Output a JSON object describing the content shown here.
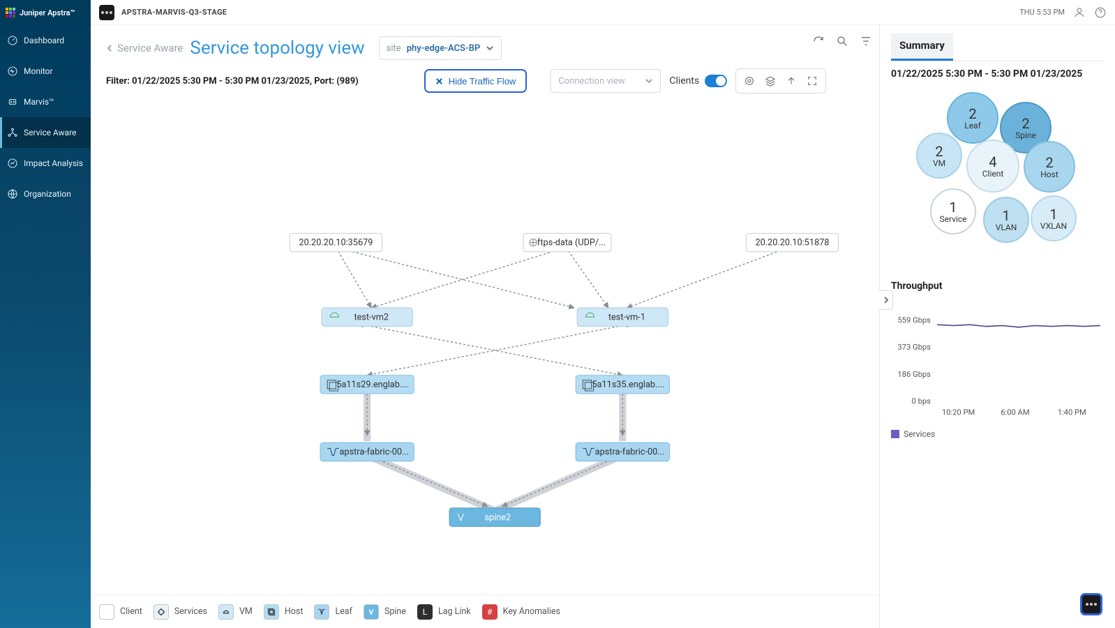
{
  "brand": {
    "name": "Juniper Apstra™"
  },
  "topbar": {
    "app_name": "APSTRA-MARVIS-Q3-STAGE",
    "clock": "THU 5:53 PM"
  },
  "sidebar": {
    "items": [
      {
        "label": "Dashboard"
      },
      {
        "label": "Monitor"
      },
      {
        "label": "Marvis™"
      },
      {
        "label": "Service Aware"
      },
      {
        "label": "Impact Analysis"
      },
      {
        "label": "Organization"
      }
    ]
  },
  "header": {
    "back_label": "Service Aware",
    "title": "Service topology view",
    "site_prefix": "site",
    "site_value": "phy-edge-ACS-BP"
  },
  "filter": {
    "text": "Filter: 01/22/2025 5:30 PM - 5:30 PM 01/23/2025, Port: (989)",
    "hide_btn": "Hide Traffic Flow",
    "conn_placeholder": "Connection view",
    "clients_label": "Clients"
  },
  "topology": {
    "nodes": {
      "svc_left": {
        "label": "20.20.20.10:35679",
        "type": "service"
      },
      "svc_mid": {
        "label": "ftps-data (UDP/...",
        "type": "service"
      },
      "svc_right": {
        "label": "20.20.20.10:51878",
        "type": "service"
      },
      "vm_left": {
        "label": "test-vm2",
        "type": "vm"
      },
      "vm_right": {
        "label": "test-vm-1",
        "type": "vm"
      },
      "host_left": {
        "label": "5a11s29.englab....",
        "type": "host"
      },
      "host_right": {
        "label": "5a11s35.englab....",
        "type": "host"
      },
      "leaf_left": {
        "label": "apstra-fabric-00...",
        "type": "leaf"
      },
      "leaf_right": {
        "label": "apstra-fabric-00...",
        "type": "leaf"
      },
      "spine": {
        "label": "spine2",
        "type": "spine"
      }
    }
  },
  "legend": {
    "items": [
      {
        "label": "Client"
      },
      {
        "label": "Services"
      },
      {
        "label": "VM"
      },
      {
        "label": "Host"
      },
      {
        "label": "Leaf"
      },
      {
        "label": "Spine"
      },
      {
        "label": "Lag Link"
      },
      {
        "label": "Key Anomalies"
      }
    ]
  },
  "summary": {
    "tab": "Summary",
    "range": "01/22/2025 5:30 PM - 5:30 PM 01/23/2025",
    "bubbles": [
      {
        "num": "2",
        "lbl": "Leaf",
        "d": 74,
        "x": 80,
        "y": 0,
        "bg": "#8fc9ea",
        "border": "#6bb2da"
      },
      {
        "num": "2",
        "lbl": "Spine",
        "d": 74,
        "x": 156,
        "y": 14,
        "bg": "#6bb2da",
        "border": "#4c99c7"
      },
      {
        "num": "2",
        "lbl": "VM",
        "d": 66,
        "x": 36,
        "y": 58,
        "bg": "#c8e5f5",
        "border": "#a9d2ea"
      },
      {
        "num": "4",
        "lbl": "Client",
        "d": 76,
        "x": 108,
        "y": 68,
        "bg": "#e8f3fa",
        "border": "#c7dceb"
      },
      {
        "num": "2",
        "lbl": "Host",
        "d": 74,
        "x": 190,
        "y": 70,
        "bg": "#a9d6ef",
        "border": "#85bfde"
      },
      {
        "num": "1",
        "lbl": "Service",
        "d": 66,
        "x": 56,
        "y": 138,
        "bg": "#ffffff",
        "border": "#c7d4de"
      },
      {
        "num": "1",
        "lbl": "VLAN",
        "d": 66,
        "x": 132,
        "y": 150,
        "bg": "#bfe0f2",
        "border": "#9ccbe4"
      },
      {
        "num": "1",
        "lbl": "VXLAN",
        "d": 66,
        "x": 200,
        "y": 148,
        "bg": "#d7ecf7",
        "border": "#b6d7ea"
      }
    ],
    "chart": {
      "title": "Throughput",
      "yticks": [
        "559 Gbps",
        "373 Gbps",
        "186 Gbps",
        "0 bps"
      ],
      "xticks": [
        "10:20 PM",
        "6:00 AM",
        "1:40 PM"
      ],
      "legend": "Services",
      "series_color": "#4a4a88",
      "points": [
        [
          0,
          12
        ],
        [
          10,
          13
        ],
        [
          20,
          12
        ],
        [
          30,
          14
        ],
        [
          40,
          13
        ],
        [
          50,
          15
        ],
        [
          60,
          13
        ],
        [
          70,
          14
        ],
        [
          80,
          13
        ],
        [
          90,
          14
        ],
        [
          100,
          13
        ]
      ]
    }
  }
}
